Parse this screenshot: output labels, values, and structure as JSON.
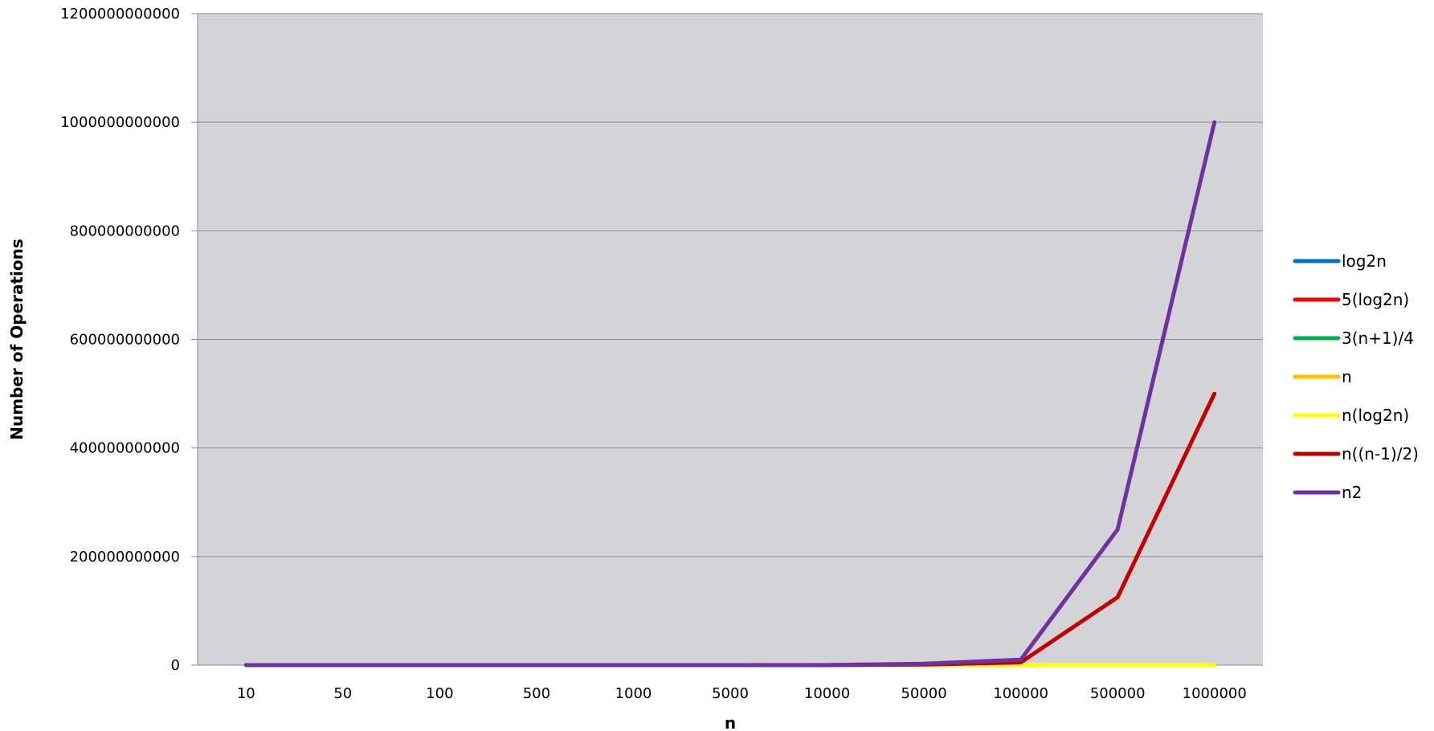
{
  "chart_data": {
    "type": "line",
    "title": "",
    "xlabel": "n",
    "ylabel": "Number of Operations",
    "categories": [
      "10",
      "50",
      "100",
      "500",
      "1000",
      "5000",
      "10000",
      "50000",
      "100000",
      "500000",
      "1000000"
    ],
    "ylim": [
      0,
      1200000000000
    ],
    "yticks": [
      "0",
      "200000000000",
      "400000000000",
      "600000000000",
      "800000000000",
      "1000000000000",
      "1200000000000"
    ],
    "grid": true,
    "plot_background": "#d4d4d8",
    "legend_position": "right",
    "series": [
      {
        "name": "log2n",
        "color": "#0070c0",
        "values": [
          3.32,
          5.64,
          6.64,
          8.97,
          9.97,
          12.29,
          13.29,
          15.61,
          16.61,
          18.93,
          19.93
        ]
      },
      {
        "name": "5(log2n)",
        "color": "#ff0000",
        "values": [
          16.6,
          28.2,
          33.2,
          44.8,
          49.8,
          61.4,
          66.4,
          78.0,
          83.0,
          94.6,
          99.7
        ]
      },
      {
        "name": "3(n+1)/4",
        "color": "#00b050",
        "values": [
          8.25,
          38.25,
          75.75,
          375.75,
          750.75,
          3750.75,
          7500.75,
          37500.75,
          75000.75,
          375000.75,
          750000.75
        ]
      },
      {
        "name": "n",
        "color": "#ffc000",
        "values": [
          10,
          50,
          100,
          500,
          1000,
          5000,
          10000,
          50000,
          100000,
          500000,
          1000000
        ]
      },
      {
        "name": "n(log2n)",
        "color": "#ffff00",
        "values": [
          33,
          282,
          664,
          4483,
          9966,
          61439,
          132877,
          780482,
          1660964,
          9465784,
          19931569
        ]
      },
      {
        "name": "n((n-1)/2)",
        "color": "#c00000",
        "values": [
          45,
          1225,
          4950,
          124750,
          499500,
          12497500,
          49995000,
          1249975000,
          4999950000,
          124999750000,
          499999500000
        ]
      },
      {
        "name": "n2",
        "color": "#7030a0",
        "values": [
          100,
          2500,
          10000,
          250000,
          1000000,
          25000000,
          100000000,
          2500000000,
          10000000000,
          250000000000,
          1000000000000
        ]
      }
    ]
  }
}
